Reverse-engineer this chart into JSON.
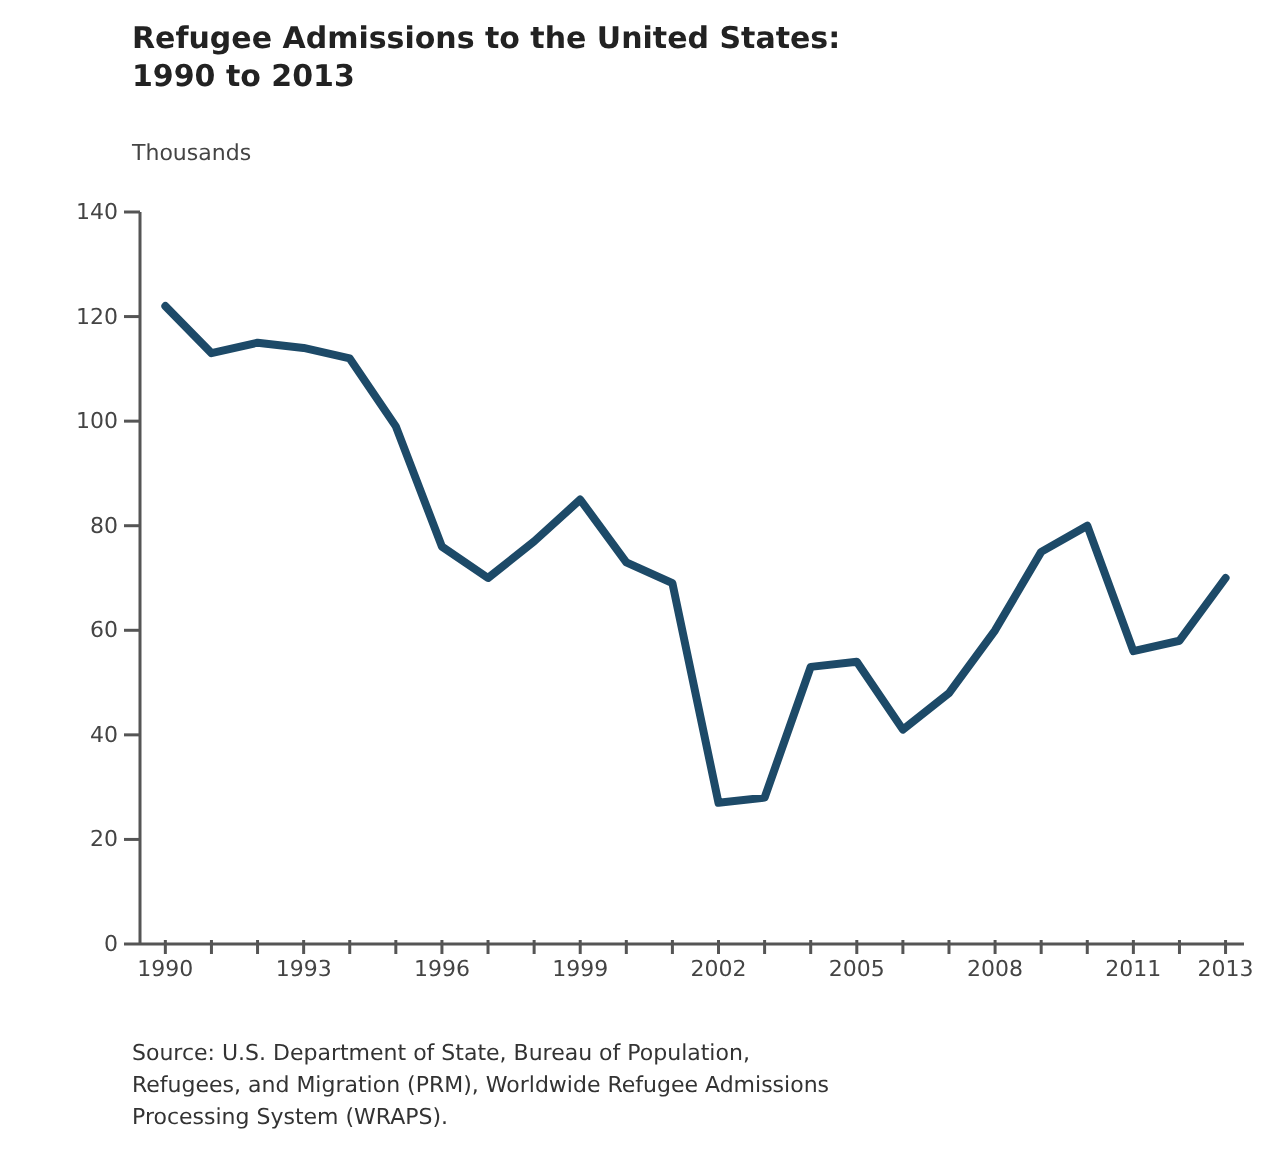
{
  "chart_data": {
    "type": "line",
    "title": "Refugee Admissions to the United States:\n1990 to 2013",
    "ylabel": "Thousands",
    "x": [
      1990,
      1991,
      1992,
      1993,
      1994,
      1995,
      1996,
      1997,
      1998,
      1999,
      2000,
      2001,
      2002,
      2003,
      2004,
      2005,
      2006,
      2007,
      2008,
      2009,
      2010,
      2011,
      2012,
      2013
    ],
    "series": [
      {
        "color": "#1d4a68",
        "values": [
          122,
          113,
          115,
          114,
          112,
          99,
          76,
          70,
          77,
          85,
          73,
          69,
          27,
          28,
          53,
          54,
          41,
          48,
          60,
          75,
          80,
          56,
          58,
          70
        ]
      }
    ],
    "xlim": [
      1989.45,
      2013.4
    ],
    "xticks": [
      1990,
      {
        "value": 1991,
        "label": null
      },
      {
        "value": 1992,
        "label": null
      },
      1993,
      {
        "value": 1994,
        "label": null
      },
      {
        "value": 1995,
        "label": null
      },
      1996,
      {
        "value": 1997,
        "label": null
      },
      {
        "value": 1998,
        "label": null
      },
      1999,
      {
        "value": 2000,
        "label": null
      },
      {
        "value": 2001,
        "label": null
      },
      2002,
      {
        "value": 2003,
        "label": null
      },
      {
        "value": 2004,
        "label": null
      },
      2005,
      {
        "value": 2006,
        "label": null
      },
      {
        "value": 2007,
        "label": null
      },
      2008,
      {
        "value": 2009,
        "label": null
      },
      {
        "value": 2010,
        "label": null
      },
      2011,
      {
        "value": 2012,
        "label": null
      },
      2013
    ],
    "ylim": [
      0,
      140
    ],
    "yticks": [
      0,
      20,
      40,
      60,
      80,
      100,
      120,
      140
    ],
    "grid": false,
    "marker": "none",
    "line_style": "solid",
    "annotations": [
      "Source: U.S. Department of State, Bureau of Population,\nRefugees, and Migration (PRM), Worldwide Refugee Admissions\nProcessing System (WRAPS)."
    ]
  }
}
